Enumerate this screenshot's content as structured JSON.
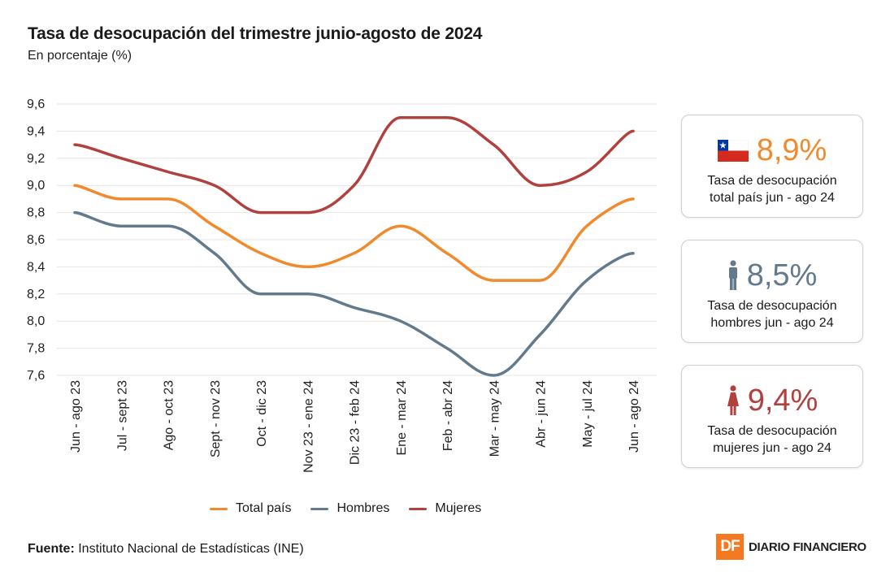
{
  "header": {
    "title": "Tasa de desocupación del trimestre junio-agosto de 2024",
    "subtitle": "En porcentaje (%)"
  },
  "chart_data": {
    "type": "line",
    "title": "Tasa de desocupación del trimestre junio-agosto de 2024",
    "ylabel": "En porcentaje (%)",
    "xlabel": "",
    "ylim": [
      7.6,
      9.6
    ],
    "yticks": [
      9.6,
      9.4,
      9.2,
      9.0,
      8.8,
      8.6,
      8.4,
      8.2,
      8.0,
      7.8,
      7.6
    ],
    "ytick_labels": [
      "9,6",
      "9,4",
      "9,2",
      "9,0",
      "8,8",
      "8,6",
      "8,4",
      "8,2",
      "8,0",
      "7,8",
      "7,6"
    ],
    "grid": true,
    "categories": [
      "Jun - ago 23",
      "Jul - sept 23",
      "Ago - oct 23",
      "Sept - nov 23",
      "Oct - dic 23",
      "Nov 23 - ene 24",
      "Dic 23 - feb 24",
      "Ene - mar 24",
      "Feb - abr 24",
      "Mar - may 24",
      "Abr - jun 24",
      "May - jul 24",
      "Jun - ago 24"
    ],
    "series": [
      {
        "name": "Total país",
        "color": "#f08a2c",
        "values": [
          9.0,
          8.9,
          8.9,
          8.7,
          8.5,
          8.4,
          8.5,
          8.7,
          8.5,
          8.3,
          8.3,
          8.7,
          8.9
        ]
      },
      {
        "name": "Hombres",
        "color": "#637a8c",
        "values": [
          8.8,
          8.7,
          8.7,
          8.5,
          8.2,
          8.2,
          8.1,
          8.0,
          7.8,
          7.6,
          7.9,
          8.3,
          8.5
        ]
      },
      {
        "name": "Mujeres",
        "color": "#b0413e",
        "values": [
          9.3,
          9.2,
          9.1,
          9.0,
          8.8,
          8.8,
          9.0,
          9.5,
          9.5,
          9.3,
          9.0,
          9.1,
          9.4
        ]
      }
    ],
    "legend_position": "bottom-center"
  },
  "legend": [
    {
      "label": "Total país",
      "color": "#f08a2c"
    },
    {
      "label": "Hombres",
      "color": "#637a8c"
    },
    {
      "label": "Mujeres",
      "color": "#b0413e"
    }
  ],
  "cards": [
    {
      "icon": "chile-flag-icon",
      "value": "8,9%",
      "line1": "Tasa de desocupación",
      "line2": "total país jun - ago 24",
      "color": "#f08a2c"
    },
    {
      "icon": "man-icon",
      "value": "8,5%",
      "line1": "Tasa de desocupación",
      "line2": "hombres jun - ago 24",
      "color": "#637a8c"
    },
    {
      "icon": "woman-icon",
      "value": "9,4%",
      "line1": "Tasa de desocupación",
      "line2": "mujeres jun - ago 24",
      "color": "#b0413e"
    }
  ],
  "footer": {
    "source_label": "Fuente:",
    "source_text": " Instituto Nacional de Estadísticas (INE)",
    "brand_logo": "DF",
    "brand_name": "DIARIO FINANCIERO"
  }
}
